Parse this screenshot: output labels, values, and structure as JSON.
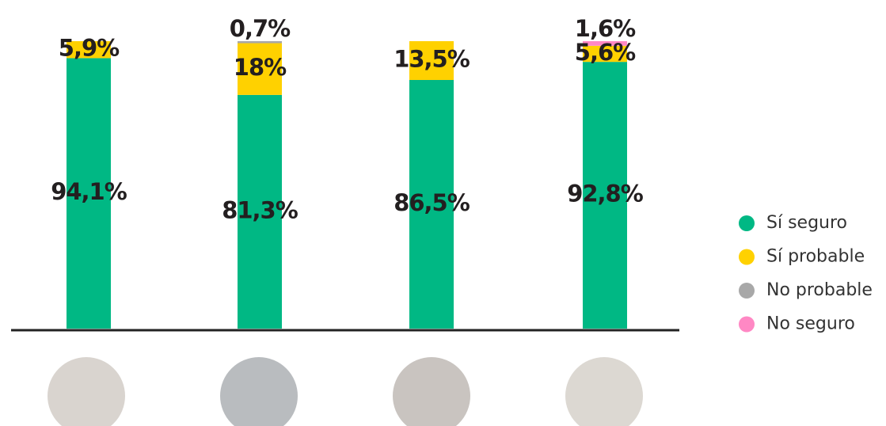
{
  "chart_data": {
    "type": "stacked_bar",
    "categories": [
      null,
      null,
      null,
      null
    ],
    "ylim": [
      0,
      100
    ],
    "series": [
      {
        "name": "Sí seguro",
        "color": "#00b884",
        "values": [
          94.1,
          81.3,
          86.5,
          92.8
        ],
        "value_labels": [
          "94,1%",
          "81,3%",
          "86,5%",
          "92,8%"
        ]
      },
      {
        "name": "Sí probable",
        "color": "#ffd100",
        "values": [
          5.9,
          18,
          13.5,
          5.6
        ],
        "value_labels": [
          "5,9%",
          "18%",
          "13,5%",
          "5,6%"
        ]
      },
      {
        "name": "No probable",
        "color": "#a8a8a8",
        "values": [
          null,
          0.7,
          null,
          null
        ],
        "value_labels": [
          null,
          "0,7%",
          null,
          null
        ]
      },
      {
        "name": "No seguro",
        "color": "#ff88c4",
        "values": [
          null,
          null,
          null,
          1.6
        ],
        "value_labels": [
          null,
          null,
          null,
          "1,6%"
        ]
      }
    ]
  }
}
